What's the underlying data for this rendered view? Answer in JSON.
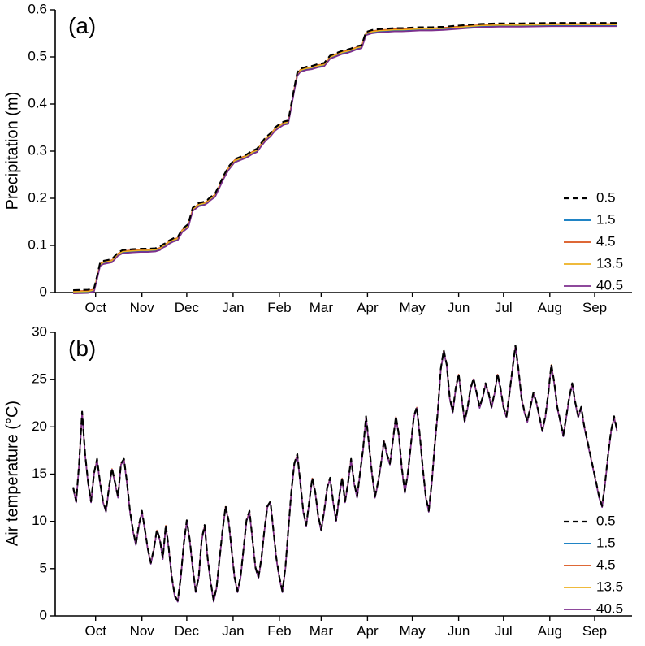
{
  "chart_data": [
    {
      "type": "line",
      "panel_label": "(a)",
      "ylabel": "Precipitation (m)",
      "xlim": [
        -12,
        374
      ],
      "ylim": [
        0,
        0.6
      ],
      "yticks": [
        0,
        0.1,
        0.2,
        0.3,
        0.4,
        0.5,
        0.6
      ],
      "ytick_labels": [
        "0",
        "0.1",
        "0.2",
        "0.3",
        "0.4",
        "0.5",
        "0.6"
      ],
      "xtick_labels": [
        "Oct",
        "Nov",
        "Dec",
        "Jan",
        "Feb",
        "Mar",
        "Apr",
        "May",
        "Jun",
        "Jul",
        "Aug",
        "Sep"
      ],
      "xtick_days": [
        15,
        46,
        76,
        107,
        138,
        166,
        197,
        227,
        258,
        288,
        319,
        349
      ],
      "x_days": [
        0,
        10,
        14,
        16,
        18,
        20,
        23,
        26,
        30,
        33,
        36,
        40,
        45,
        50,
        55,
        58,
        60,
        62,
        64,
        67,
        70,
        73,
        75,
        77,
        80,
        84,
        88,
        90,
        92,
        95,
        98,
        101,
        104,
        108,
        112,
        116,
        120,
        123,
        126,
        129,
        132,
        135,
        138,
        141,
        144,
        146,
        148,
        150,
        152,
        156,
        160,
        164,
        168,
        172,
        176,
        180,
        183,
        186,
        190,
        193,
        196,
        200,
        205,
        210,
        215,
        220,
        226,
        232,
        240,
        248,
        256,
        264,
        273,
        285,
        300,
        320,
        340,
        364
      ],
      "base_values": [
        0.0,
        0.001,
        0.004,
        0.03,
        0.058,
        0.062,
        0.064,
        0.066,
        0.08,
        0.085,
        0.086,
        0.087,
        0.088,
        0.088,
        0.089,
        0.092,
        0.097,
        0.1,
        0.105,
        0.11,
        0.113,
        0.13,
        0.135,
        0.14,
        0.175,
        0.185,
        0.188,
        0.192,
        0.198,
        0.205,
        0.225,
        0.245,
        0.262,
        0.278,
        0.283,
        0.288,
        0.296,
        0.3,
        0.313,
        0.325,
        0.333,
        0.345,
        0.352,
        0.358,
        0.36,
        0.395,
        0.43,
        0.462,
        0.47,
        0.474,
        0.476,
        0.48,
        0.482,
        0.498,
        0.503,
        0.508,
        0.51,
        0.513,
        0.518,
        0.52,
        0.548,
        0.552,
        0.554,
        0.555,
        0.556,
        0.556,
        0.557,
        0.558,
        0.558,
        0.559,
        0.561,
        0.563,
        0.565,
        0.566,
        0.566,
        0.567,
        0.567,
        0.567
      ],
      "series": [
        {
          "name": "0.5",
          "color": "#000000",
          "dash": "dashed",
          "offset": 0.005,
          "width": 2.1
        },
        {
          "name": "1.5",
          "color": "#0072BD",
          "dash": "solid",
          "offset": 0.0,
          "width": 1.5
        },
        {
          "name": "4.5",
          "color": "#D95319",
          "dash": "solid",
          "offset": 0.003,
          "width": 1.5
        },
        {
          "name": "13.5",
          "color": "#EDB120",
          "dash": "solid",
          "offset": 0.0015,
          "width": 1.5
        },
        {
          "name": "40.5",
          "color": "#7E2F8E",
          "dash": "solid",
          "offset": -0.002,
          "width": 1.7
        }
      ]
    },
    {
      "type": "line",
      "panel_label": "(b)",
      "ylabel": "Air temperature (°C)",
      "xlim": [
        -12,
        374
      ],
      "ylim": [
        0,
        30
      ],
      "yticks": [
        0,
        5,
        10,
        15,
        20,
        25,
        30
      ],
      "ytick_labels": [
        "0",
        "5",
        "10",
        "15",
        "20",
        "25",
        "30"
      ],
      "xtick_labels": [
        "Oct",
        "Nov",
        "Dec",
        "Jan",
        "Feb",
        "Mar",
        "Apr",
        "May",
        "Jun",
        "Jul",
        "Aug",
        "Sep"
      ],
      "xtick_days": [
        15,
        46,
        76,
        107,
        138,
        166,
        197,
        227,
        258,
        288,
        319,
        349
      ],
      "x_step": 2,
      "values": [
        13.5,
        12,
        16,
        21.5,
        17,
        14,
        12,
        15,
        16.5,
        14,
        12,
        11,
        13.5,
        15.5,
        14,
        12.5,
        16,
        16.5,
        14,
        11,
        9,
        7.5,
        9.5,
        11,
        9,
        7,
        5.5,
        7,
        9,
        8,
        6,
        9.5,
        7,
        4,
        2,
        1.5,
        4,
        7.5,
        10,
        8,
        5,
        2.5,
        4,
        8,
        9.5,
        6,
        3.5,
        1.5,
        3,
        6,
        9,
        11.5,
        10,
        7,
        4,
        2.5,
        4,
        7,
        10,
        11,
        8,
        5,
        4,
        6,
        9,
        11.5,
        12,
        9,
        6,
        4,
        2.5,
        5,
        9,
        13,
        16,
        17,
        14,
        11,
        9.5,
        12,
        14.5,
        13,
        10.5,
        9,
        11,
        13.5,
        14.5,
        12,
        10,
        12.5,
        14.5,
        12,
        14,
        16.5,
        14,
        12.5,
        15,
        17.5,
        21,
        18,
        15,
        12.5,
        14,
        16,
        18.5,
        17,
        16,
        18.5,
        21,
        19,
        15.5,
        13,
        15,
        18,
        21,
        22,
        19,
        15.5,
        12.5,
        11,
        14,
        18,
        21.5,
        26,
        28,
        26.5,
        23,
        21.5,
        24,
        25.5,
        23,
        20.5,
        22,
        24,
        25,
        23.5,
        22,
        23,
        24.5,
        23.5,
        22,
        23.5,
        25.5,
        24,
        22,
        21,
        23.5,
        26,
        28.5,
        26,
        23,
        21.5,
        20.5,
        22,
        23.5,
        22.5,
        21,
        19.5,
        21,
        23.5,
        26.5,
        24.5,
        22,
        20.5,
        19,
        21,
        23,
        24.5,
        22.5,
        21,
        22,
        20,
        18.5,
        17,
        15.5,
        14,
        12.5,
        11.5,
        14,
        17,
        19.5,
        21,
        19.5
      ],
      "series": [
        {
          "name": "0.5",
          "color": "#000000",
          "dash": "dashed",
          "offset": 0.12,
          "width": 2.1
        },
        {
          "name": "1.5",
          "color": "#0072BD",
          "dash": "solid",
          "offset": 0.0,
          "width": 1.5
        },
        {
          "name": "4.5",
          "color": "#D95319",
          "dash": "solid",
          "offset": 0.06,
          "width": 1.5
        },
        {
          "name": "13.5",
          "color": "#EDB120",
          "dash": "solid",
          "offset": 0.03,
          "width": 1.5
        },
        {
          "name": "40.5",
          "color": "#7E2F8E",
          "dash": "solid",
          "offset": 0.0,
          "width": 1.7
        }
      ]
    }
  ]
}
